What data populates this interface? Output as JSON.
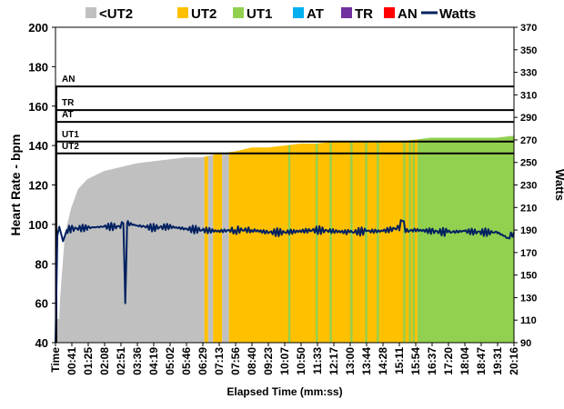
{
  "colors": {
    "below_ut2": "#c0c0c0",
    "ut2": "#ffc000",
    "ut1": "#92d050",
    "at": "#00b0f0",
    "tr": "#7030a0",
    "an": "#ff0000",
    "watts": "#002060"
  },
  "chart_data": {
    "type": "area",
    "xlabel": "Elapsed Time (mm:ss)",
    "ylabel": "Heart Rate - bpm",
    "y2label": "Watts",
    "ylim": [
      40,
      200
    ],
    "y2lim": [
      90,
      370
    ],
    "yticks": [
      "40",
      "60",
      "80",
      "100",
      "120",
      "140",
      "160",
      "180",
      "200"
    ],
    "y2ticks": [
      "90",
      "110",
      "130",
      "150",
      "170",
      "190",
      "210",
      "230",
      "250",
      "270",
      "290",
      "310",
      "330",
      "350",
      "370"
    ],
    "x_tick_labels": [
      "Time",
      "00:41",
      "01:25",
      "02:08",
      "02:51",
      "03:36",
      "04:19",
      "05:02",
      "05:46",
      "06:29",
      "07:13",
      "07:56",
      "08:40",
      "09:23",
      "10:07",
      "10:50",
      "11:33",
      "12:17",
      "13:00",
      "13:44",
      "14:28",
      "15:11",
      "15:54",
      "16:37",
      "17:20",
      "18:04",
      "18:47",
      "19:31",
      "20:16"
    ],
    "legend": [
      {
        "name": "<UT2",
        "kind": "area",
        "color": "#c0c0c0"
      },
      {
        "name": "UT2",
        "kind": "area",
        "color": "#ffc000"
      },
      {
        "name": "UT1",
        "kind": "area",
        "color": "#92d050"
      },
      {
        "name": "AT",
        "kind": "area",
        "color": "#00b0f0"
      },
      {
        "name": "TR",
        "kind": "area",
        "color": "#7030a0"
      },
      {
        "name": "AN",
        "kind": "area",
        "color": "#ff0000"
      },
      {
        "name": "Watts",
        "kind": "line",
        "color": "#002060"
      }
    ],
    "zone_thresholds": [
      {
        "name": "UT2",
        "hr": 136
      },
      {
        "name": "UT1",
        "hr": 142
      },
      {
        "name": "AT",
        "hr": 152
      },
      {
        "name": "TR",
        "hr": 158
      },
      {
        "name": "AN",
        "hr": 170
      }
    ],
    "heart_rate": {
      "points": [
        {
          "t": "00:00",
          "hr": 52
        },
        {
          "t": "00:10",
          "hr": 52
        },
        {
          "t": "00:12",
          "hr": 62
        },
        {
          "t": "00:25",
          "hr": 95
        },
        {
          "t": "00:41",
          "hr": 108
        },
        {
          "t": "01:00",
          "hr": 118
        },
        {
          "t": "01:25",
          "hr": 123
        },
        {
          "t": "02:08",
          "hr": 127
        },
        {
          "t": "02:51",
          "hr": 129
        },
        {
          "t": "03:36",
          "hr": 131
        },
        {
          "t": "04:19",
          "hr": 132
        },
        {
          "t": "05:02",
          "hr": 133
        },
        {
          "t": "05:46",
          "hr": 134
        },
        {
          "t": "06:29",
          "hr": 134
        },
        {
          "t": "07:13",
          "hr": 136
        },
        {
          "t": "07:56",
          "hr": 137
        },
        {
          "t": "08:40",
          "hr": 139
        },
        {
          "t": "09:23",
          "hr": 139
        },
        {
          "t": "10:07",
          "hr": 140
        },
        {
          "t": "10:50",
          "hr": 141
        },
        {
          "t": "11:33",
          "hr": 141
        },
        {
          "t": "12:17",
          "hr": 142
        },
        {
          "t": "13:00",
          "hr": 142
        },
        {
          "t": "13:44",
          "hr": 142
        },
        {
          "t": "14:28",
          "hr": 142
        },
        {
          "t": "15:11",
          "hr": 142
        },
        {
          "t": "15:54",
          "hr": 143
        },
        {
          "t": "16:37",
          "hr": 144
        },
        {
          "t": "17:20",
          "hr": 144
        },
        {
          "t": "18:04",
          "hr": 144
        },
        {
          "t": "18:47",
          "hr": 144
        },
        {
          "t": "19:31",
          "hr": 144
        },
        {
          "t": "20:16",
          "hr": 145
        }
      ],
      "zone_bands": [
        {
          "start": "00:00",
          "end": "06:35",
          "zone": "<UT2"
        },
        {
          "start": "06:35",
          "end": "06:45",
          "zone": "UT2"
        },
        {
          "start": "06:45",
          "end": "06:58",
          "zone": "<UT2"
        },
        {
          "start": "06:58",
          "end": "07:22",
          "zone": "UT2"
        },
        {
          "start": "07:22",
          "end": "07:40",
          "zone": "<UT2"
        },
        {
          "start": "07:40",
          "end": "16:00",
          "zone": "UT2"
        },
        {
          "start": "16:00",
          "end": "20:16",
          "zone": "UT1"
        }
      ],
      "ut1_spikes": [
        "10:20",
        "11:33",
        "12:10",
        "13:05",
        "13:44",
        "14:15",
        "15:25",
        "15:40",
        "15:50"
      ]
    },
    "watts": {
      "points": [
        {
          "t": "00:00",
          "w": 90
        },
        {
          "t": "00:05",
          "w": 185
        },
        {
          "t": "00:10",
          "w": 193
        },
        {
          "t": "00:20",
          "w": 180
        },
        {
          "t": "00:30",
          "w": 190
        },
        {
          "t": "00:41",
          "w": 191
        },
        {
          "t": "01:25",
          "w": 192
        },
        {
          "t": "02:08",
          "w": 193
        },
        {
          "t": "02:51",
          "w": 193
        },
        {
          "t": "03:00",
          "w": 196
        },
        {
          "t": "03:05",
          "w": 125
        },
        {
          "t": "03:10",
          "w": 196
        },
        {
          "t": "03:36",
          "w": 194
        },
        {
          "t": "04:19",
          "w": 192
        },
        {
          "t": "05:02",
          "w": 193
        },
        {
          "t": "05:46",
          "w": 191
        },
        {
          "t": "06:29",
          "w": 190
        },
        {
          "t": "07:13",
          "w": 189
        },
        {
          "t": "07:56",
          "w": 190
        },
        {
          "t": "08:40",
          "w": 190
        },
        {
          "t": "09:23",
          "w": 188
        },
        {
          "t": "10:07",
          "w": 188
        },
        {
          "t": "10:50",
          "w": 189
        },
        {
          "t": "11:33",
          "w": 190
        },
        {
          "t": "12:17",
          "w": 189
        },
        {
          "t": "13:00",
          "w": 188
        },
        {
          "t": "13:44",
          "w": 189
        },
        {
          "t": "14:28",
          "w": 189
        },
        {
          "t": "15:11",
          "w": 192
        },
        {
          "t": "15:20",
          "w": 198
        },
        {
          "t": "15:30",
          "w": 189
        },
        {
          "t": "15:54",
          "w": 190
        },
        {
          "t": "16:37",
          "w": 189
        },
        {
          "t": "17:20",
          "w": 188
        },
        {
          "t": "18:04",
          "w": 189
        },
        {
          "t": "18:47",
          "w": 188
        },
        {
          "t": "19:31",
          "w": 188
        },
        {
          "t": "20:00",
          "w": 183
        },
        {
          "t": "20:16",
          "w": 188
        }
      ]
    }
  }
}
